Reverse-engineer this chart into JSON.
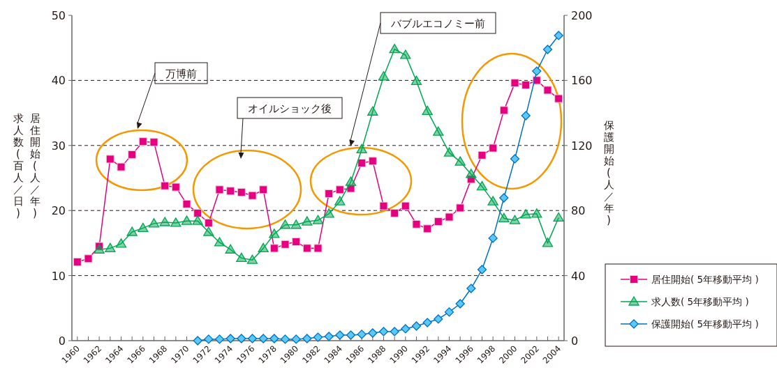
{
  "chart_data": {
    "type": "line",
    "ylabel": "居住開始(人／年)",
    "y2label": "保護開始(人／年)",
    "xlim": [
      1959.5,
      2004.5
    ],
    "xticks": [
      1960,
      {
        "value": 1961,
        "label": null
      },
      1962,
      {
        "value": 1963,
        "label": null
      },
      1964,
      {
        "value": 1965,
        "label": null
      },
      1966,
      {
        "value": 1967,
        "label": null
      },
      1968,
      {
        "value": 1969,
        "label": null
      },
      1970,
      {
        "value": 1971,
        "label": null
      },
      1972,
      {
        "value": 1973,
        "label": null
      },
      1974,
      {
        "value": 1975,
        "label": null
      },
      1976,
      {
        "value": 1977,
        "label": null
      },
      1978,
      {
        "value": 1979,
        "label": null
      },
      1980,
      {
        "value": 1981,
        "label": null
      },
      1982,
      {
        "value": 1983,
        "label": null
      },
      1984,
      {
        "value": 1985,
        "label": null
      },
      1986,
      {
        "value": 1987,
        "label": null
      },
      1988,
      {
        "value": 1989,
        "label": null
      },
      1990,
      {
        "value": 1991,
        "label": null
      },
      1992,
      {
        "value": 1993,
        "label": null
      },
      1994,
      {
        "value": 1995,
        "label": null
      },
      1996,
      {
        "value": 1997,
        "label": null
      },
      1998,
      {
        "value": 1999,
        "label": null
      },
      2000,
      {
        "value": 2001,
        "label": null
      },
      2002,
      {
        "value": 2003,
        "label": null
      },
      2004
    ],
    "ylim": [
      0,
      50
    ],
    "yticks": [
      0,
      10,
      20,
      30,
      40,
      50
    ],
    "y2lim": [
      0,
      200
    ],
    "y2ticks": [
      0,
      40,
      80,
      120,
      160,
      200
    ],
    "grid": "y",
    "legend": "right",
    "series": [
      {
        "name": "居住開始( 5年移動平均 )",
        "color": "#e4007f",
        "marker": "square",
        "x": [
          1960,
          1961,
          1962,
          1963,
          1964,
          1965,
          1966,
          1967,
          1968,
          1969,
          1970,
          1971,
          1972,
          1973,
          1974,
          1975,
          1976,
          1977,
          1978,
          1979,
          1980,
          1981,
          1982,
          1983,
          1984,
          1985,
          1986,
          1987,
          1988,
          1989,
          1990,
          1991,
          1992,
          1993,
          1994,
          1995,
          1996,
          1997,
          1998,
          1999,
          2000,
          2001,
          2002,
          2003,
          2004
        ],
        "values": [
          12.1,
          12.6,
          14.5,
          27.9,
          26.7,
          28.6,
          30.6,
          30.5,
          23.8,
          23.6,
          21.0,
          19.6,
          18.1,
          23.2,
          23.0,
          22.8,
          22.3,
          23.2,
          14.2,
          14.8,
          15.2,
          14.2,
          14.2,
          22.6,
          23.2,
          23.4,
          27.3,
          27.6,
          20.7,
          19.6,
          20.7,
          17.9,
          17.2,
          18.3,
          19.0,
          20.4,
          24.8,
          28.5,
          29.6,
          35.4,
          39.6,
          39.3,
          40.0,
          38.5,
          37.2
        ]
      },
      {
        "name": "求人数( 5年移動平均 )",
        "color": "#00a650",
        "marker": "triangle",
        "x": [
          1962,
          1963,
          1964,
          1965,
          1966,
          1967,
          1968,
          1969,
          1970,
          1971,
          1972,
          1973,
          1974,
          1975,
          1976,
          1977,
          1978,
          1979,
          1980,
          1981,
          1982,
          1983,
          1984,
          1985,
          1986,
          1987,
          1988,
          1989,
          1990,
          1991,
          1992,
          1993,
          1994,
          1995,
          1996,
          1997,
          1998,
          1999,
          2000,
          2001,
          2002,
          2003,
          2004
        ],
        "values": [
          14.0,
          14.2,
          14.9,
          16.7,
          17.3,
          18.0,
          18.2,
          18.1,
          18.4,
          18.4,
          16.7,
          15.1,
          14.0,
          12.7,
          12.4,
          14.2,
          16.4,
          17.8,
          17.8,
          18.3,
          18.5,
          19.5,
          21.4,
          24.4,
          29.4,
          35.2,
          40.6,
          44.8,
          43.9,
          39.9,
          35.3,
          32.1,
          28.9,
          27.5,
          25.6,
          23.7,
          21.4,
          18.8,
          18.5,
          19.4,
          19.5,
          15.0,
          18.9
        ]
      },
      {
        "name": "保護開始( 5年移動平均 )",
        "color": "#0070c0",
        "marker": "diamond",
        "axis": "y2",
        "x": [
          1971,
          1972,
          1973,
          1974,
          1975,
          1976,
          1977,
          1978,
          1979,
          1980,
          1981,
          1982,
          1983,
          1984,
          1985,
          1986,
          1987,
          1988,
          1989,
          1990,
          1991,
          1992,
          1993,
          1994,
          1995,
          1996,
          1997,
          1998,
          1999,
          2000,
          2001,
          2002,
          2003,
          2004
        ],
        "values": [
          0,
          0.9,
          0.9,
          1.3,
          1.3,
          1.3,
          1.3,
          1.3,
          0.9,
          0.9,
          1.3,
          2.1,
          2.6,
          3.4,
          3.4,
          3.9,
          4.7,
          5.6,
          5.6,
          7.3,
          9.0,
          11.1,
          13.3,
          17.6,
          22.7,
          32.1,
          43.7,
          63.0,
          87.8,
          111.8,
          138.3,
          165.7,
          179.0,
          187.6
        ]
      }
    ],
    "annotations": [
      "万博前",
      "オイルショック後",
      "バブルエコノミー前",
      "求人数(百人／日)"
    ]
  }
}
